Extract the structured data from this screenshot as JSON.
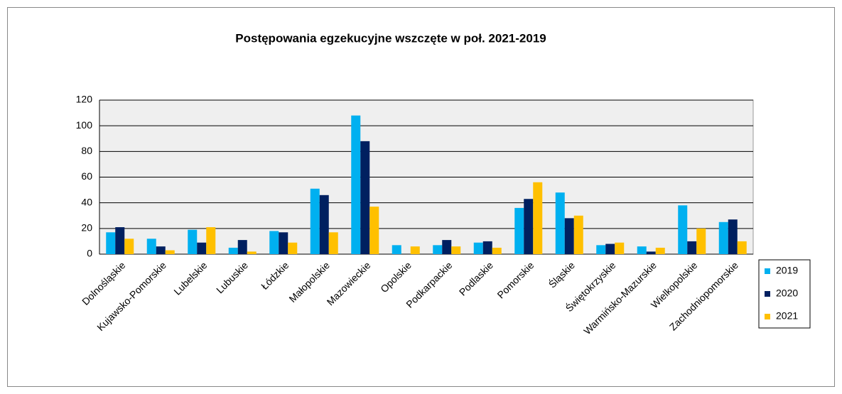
{
  "chart_data": {
    "type": "bar",
    "title": "Postępowania egzekucyjne wszczęte w poł. 2021-2019",
    "categories": [
      "Dolnośląskie",
      "Kujawsko-Pomorskie",
      "Lubelskie",
      "Lubuskie",
      "Łódzkie",
      "Małopolskie",
      "Mazowieckie",
      "Opolskie",
      "Podkarpackie",
      "Podlaskie",
      "Pomorskie",
      "Śląskie",
      "Świętokrzyskie",
      "Warmińsko-Mazurskie",
      "Wielkopolskie",
      "Zachodniopomorskie"
    ],
    "series": [
      {
        "name": "2019",
        "color": "#00b0f0",
        "values": [
          17,
          12,
          19,
          5,
          18,
          51,
          108,
          7,
          7,
          9,
          36,
          48,
          7,
          6,
          38,
          25
        ]
      },
      {
        "name": "2020",
        "color": "#002060",
        "values": [
          21,
          6,
          9,
          11,
          17,
          46,
          88,
          0,
          11,
          10,
          43,
          28,
          8,
          2,
          10,
          27
        ]
      },
      {
        "name": "2021",
        "color": "#ffc000",
        "values": [
          12,
          3,
          21,
          2,
          9,
          17,
          37,
          6,
          6,
          5,
          56,
          30,
          9,
          5,
          20,
          10
        ]
      }
    ],
    "ylim": [
      0,
      120
    ],
    "yticks": [
      0,
      20,
      40,
      60,
      80,
      100,
      120
    ],
    "grid": true,
    "legend": "right"
  }
}
